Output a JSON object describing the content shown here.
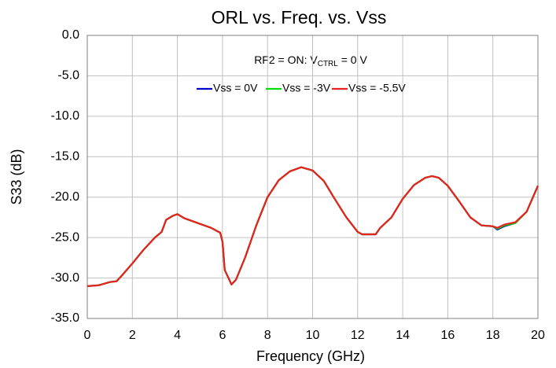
{
  "chart_data": {
    "type": "line",
    "title": "ORL vs. Freq. vs. Vss",
    "annotation": {
      "text": "RF2 = ON: V",
      "sub": "CTRL",
      "rest": " = 0 V"
    },
    "xlabel": "Frequency (GHz)",
    "ylabel": "S33 (dB)",
    "x": [
      0,
      0.5,
      1,
      1.3,
      1.5,
      2,
      2.5,
      3,
      3.3,
      3.5,
      3.8,
      4,
      4.3,
      5,
      5.5,
      5.9,
      6.0,
      6.1,
      6.4,
      6.6,
      7,
      7.5,
      8,
      8.5,
      9,
      9.5,
      10,
      10.5,
      11,
      11.5,
      12,
      12.2,
      12.8,
      13,
      13.5,
      14,
      14.5,
      15,
      15.3,
      15.6,
      16,
      16.5,
      17,
      17.5,
      18,
      18.2,
      18.5,
      19,
      19.5,
      20
    ],
    "series": [
      {
        "name": "Vss = 0V",
        "color": "#0000cc",
        "values": [
          -31.0,
          -30.9,
          -30.5,
          -30.4,
          -29.8,
          -28.2,
          -26.5,
          -25.0,
          -24.3,
          -22.8,
          -22.3,
          -22.1,
          -22.6,
          -23.3,
          -23.8,
          -24.4,
          -25.5,
          -29.0,
          -30.8,
          -30.2,
          -27.5,
          -23.5,
          -20.0,
          -17.9,
          -16.8,
          -16.3,
          -16.7,
          -18.0,
          -20.3,
          -22.5,
          -24.3,
          -24.6,
          -24.6,
          -23.8,
          -22.5,
          -20.2,
          -18.5,
          -17.6,
          -17.4,
          -17.6,
          -18.6,
          -20.5,
          -22.5,
          -23.5,
          -23.6,
          -24.0,
          -23.6,
          -23.2,
          -21.8,
          -18.6
        ]
      },
      {
        "name": "Vss = -3V",
        "color": "#00dd00",
        "values": [
          -31.0,
          -30.9,
          -30.5,
          -30.4,
          -29.8,
          -28.2,
          -26.5,
          -25.0,
          -24.3,
          -22.8,
          -22.3,
          -22.1,
          -22.6,
          -23.3,
          -23.8,
          -24.4,
          -25.5,
          -29.0,
          -30.8,
          -30.2,
          -27.5,
          -23.5,
          -20.0,
          -17.9,
          -16.8,
          -16.3,
          -16.7,
          -18.0,
          -20.3,
          -22.5,
          -24.3,
          -24.6,
          -24.6,
          -23.8,
          -22.5,
          -20.2,
          -18.5,
          -17.6,
          -17.4,
          -17.6,
          -18.6,
          -20.5,
          -22.5,
          -23.5,
          -23.6,
          -23.9,
          -23.5,
          -23.2,
          -21.8,
          -18.6
        ]
      },
      {
        "name": "Vss = -5.5V",
        "color": "#e8221c",
        "values": [
          -31.0,
          -30.9,
          -30.5,
          -30.4,
          -29.8,
          -28.2,
          -26.5,
          -25.0,
          -24.3,
          -22.8,
          -22.3,
          -22.1,
          -22.6,
          -23.3,
          -23.8,
          -24.4,
          -25.5,
          -29.0,
          -30.8,
          -30.2,
          -27.5,
          -23.5,
          -20.0,
          -17.9,
          -16.8,
          -16.3,
          -16.7,
          -18.0,
          -20.3,
          -22.5,
          -24.3,
          -24.6,
          -24.6,
          -23.8,
          -22.5,
          -20.2,
          -18.5,
          -17.6,
          -17.4,
          -17.6,
          -18.6,
          -20.5,
          -22.5,
          -23.5,
          -23.6,
          -23.8,
          -23.4,
          -23.1,
          -21.8,
          -18.6
        ]
      }
    ],
    "xlim": [
      0,
      20
    ],
    "xticks": [
      0,
      2,
      4,
      6,
      8,
      10,
      12,
      14,
      16,
      18,
      20
    ],
    "ylim": [
      -35,
      0
    ],
    "yticks": [
      {
        "value": 0,
        "label": "0.0"
      },
      {
        "value": -5,
        "label": "-5.0"
      },
      {
        "value": -10,
        "label": "-10.0"
      },
      {
        "value": -15,
        "label": "-15.0"
      },
      {
        "value": -20,
        "label": "-20.0"
      },
      {
        "value": -25,
        "label": "-25.0"
      },
      {
        "value": -30,
        "label": "-30.0"
      },
      {
        "value": -35,
        "label": "-35.0"
      }
    ],
    "grid": true
  }
}
